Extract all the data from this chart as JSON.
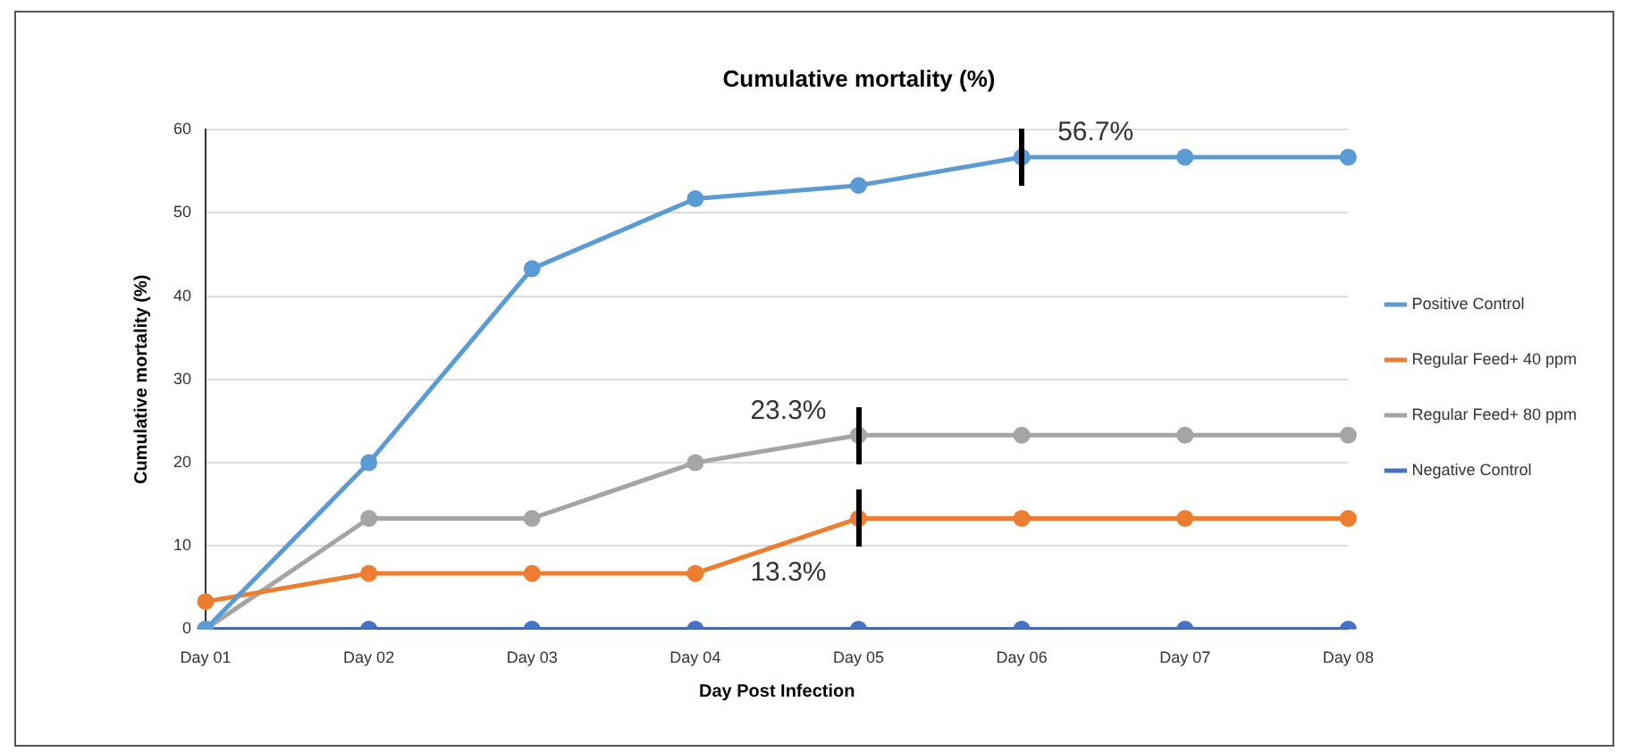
{
  "chart_data": {
    "type": "line",
    "title": "Cumulative mortality (%)",
    "xlabel": "Day Post Infection",
    "ylabel": "Cumulative mortality (%)",
    "categories": [
      "Day 01",
      "Day 02",
      "Day 03",
      "Day 04",
      "Day 05",
      "Day 06",
      "Day 07",
      "Day 08"
    ],
    "series": [
      {
        "name": "Positive Control",
        "color": "#5b9bd5",
        "values": [
          0,
          20,
          43.3,
          51.7,
          53.3,
          56.7,
          56.7,
          56.7
        ]
      },
      {
        "name": "Regular Feed+ 40 ppm",
        "color": "#ed7d31",
        "values": [
          3.3,
          6.7,
          6.7,
          6.7,
          13.3,
          13.3,
          13.3,
          13.3
        ]
      },
      {
        "name": "Regular Feed+ 80 ppm",
        "color": "#a5a5a5",
        "values": [
          0,
          13.3,
          13.3,
          20,
          23.3,
          23.3,
          23.3,
          23.3
        ]
      },
      {
        "name": "Negative Control",
        "color": "#4472c4",
        "values": [
          0,
          0,
          0,
          0,
          0,
          0,
          0,
          0
        ]
      }
    ],
    "ylim": [
      0,
      60
    ],
    "yticks": [
      0,
      10,
      20,
      30,
      40,
      50,
      60
    ],
    "grid": "y",
    "legend": "right",
    "marker": "circle",
    "line_style": "solid",
    "annotations": [
      {
        "text": "56.7%",
        "x": "Day 06",
        "y": 56.7
      },
      {
        "text": "23.3%",
        "x": "Day 05",
        "y": 23.3
      },
      {
        "text": "13.3%",
        "x": "Day 05",
        "y": 13.3
      }
    ]
  }
}
